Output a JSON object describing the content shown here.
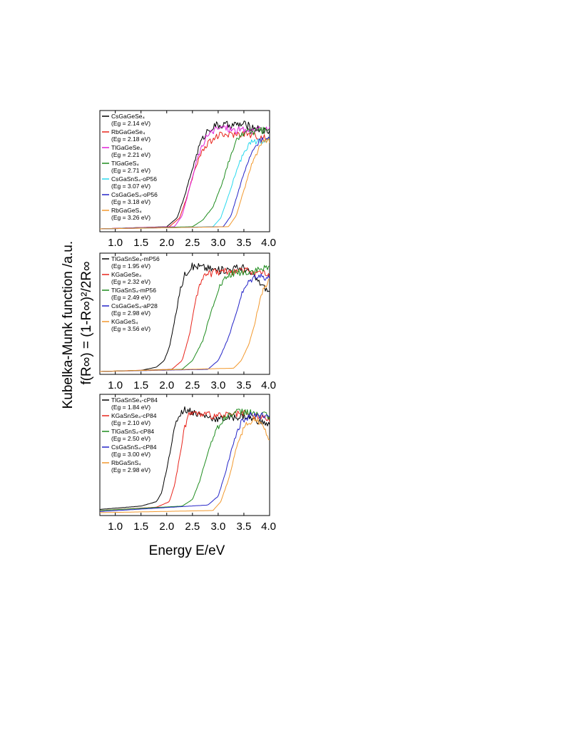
{
  "colors": {
    "black": "#000000",
    "red": "#e8251c",
    "magenta": "#e020d8",
    "green": "#1e8c1e",
    "cyan": "#29d9ee",
    "blue": "#2424c8",
    "orange": "#f2992e"
  },
  "figure": {
    "ylabel_line1": "Kubelka-Munk function /a.u.",
    "ylabel_line2": "f(R∞) = (1-R∞)²/2R∞",
    "xlabel": "Energy E/eV"
  },
  "chart_data": [
    {
      "type": "line",
      "xlim": [
        0.7,
        4.0
      ],
      "ylim": [
        0,
        1
      ],
      "y_ticks_shown": false,
      "xticks": [
        "1.0",
        "1.5",
        "2.0",
        "2.5",
        "3.0",
        "3.5",
        "4.0"
      ],
      "tick_values": [
        1.0,
        1.5,
        2.0,
        2.5,
        3.0,
        3.5,
        4.0
      ],
      "legend_position": "top-left",
      "series": [
        {
          "name": "CsGaGeSe4",
          "label": "CsGaGeSe₄",
          "eg_text": "(Eg = 2.14 eV)",
          "color": "black",
          "eg": 2.14,
          "x": [
            0.7,
            2.0,
            2.2,
            2.35,
            2.5,
            2.65,
            2.8,
            2.95,
            3.5,
            4.0
          ],
          "y": [
            0.0,
            0.02,
            0.1,
            0.3,
            0.55,
            0.78,
            0.9,
            0.94,
            0.95,
            0.88
          ]
        },
        {
          "name": "RbGaGeSe4",
          "label": "RbGaGeSe₄",
          "eg_text": "(Eg = 2.18 eV)",
          "color": "red",
          "eg": 2.18,
          "x": [
            0.7,
            2.05,
            2.25,
            2.4,
            2.55,
            2.7,
            2.85,
            3.0,
            3.5,
            4.0
          ],
          "y": [
            0.0,
            0.02,
            0.1,
            0.3,
            0.55,
            0.72,
            0.8,
            0.85,
            0.87,
            0.82
          ]
        },
        {
          "name": "TlGaGeSe4",
          "label": "TlGaGeSe₄",
          "eg_text": "(Eg = 2.21 eV)",
          "color": "magenta",
          "eg": 2.21,
          "x": [
            0.7,
            2.15,
            2.3,
            2.45,
            2.6,
            2.75,
            2.9,
            3.1,
            3.3
          ],
          "y": [
            0.0,
            0.02,
            0.12,
            0.38,
            0.65,
            0.82,
            0.9,
            0.93,
            0.9
          ]
        },
        {
          "name": "TlGaGeS4",
          "label": "TlGaGeS₄",
          "eg_text": "(Eg = 2.71 eV)",
          "color": "green",
          "eg": 2.71,
          "x": [
            0.7,
            2.5,
            2.7,
            2.9,
            3.05,
            3.2,
            3.35,
            3.5,
            4.0
          ],
          "y": [
            0.0,
            0.02,
            0.08,
            0.2,
            0.38,
            0.6,
            0.8,
            0.88,
            0.9
          ]
        },
        {
          "name": "CsGaSnS4-oP56",
          "label": "CsGaSnS₄-oP56",
          "eg_text": "(Eg = 3.07 eV)",
          "color": "cyan",
          "eg": 3.07,
          "x": [
            0.7,
            2.9,
            3.05,
            3.2,
            3.35,
            3.5,
            3.6,
            4.0
          ],
          "y": [
            0.0,
            0.02,
            0.1,
            0.3,
            0.52,
            0.7,
            0.78,
            0.82
          ]
        },
        {
          "name": "CsGaGeS4-oP56",
          "label": "CsGaGeS₄-oP56",
          "eg_text": "(Eg = 3.18 eV)",
          "color": "blue",
          "eg": 3.18,
          "x": [
            0.7,
            3.1,
            3.25,
            3.4,
            3.55,
            3.7,
            3.8,
            4.0
          ],
          "y": [
            0.0,
            0.02,
            0.12,
            0.35,
            0.58,
            0.75,
            0.8,
            0.82
          ]
        },
        {
          "name": "RbGaGeS4",
          "label": "RbGaGeS₄",
          "eg_text": "(Eg = 3.26 eV)",
          "color": "orange",
          "eg": 3.26,
          "x": [
            0.7,
            3.2,
            3.35,
            3.5,
            3.65,
            3.8,
            3.9,
            4.0
          ],
          "y": [
            0.0,
            0.02,
            0.12,
            0.35,
            0.58,
            0.75,
            0.8,
            0.8
          ]
        }
      ]
    },
    {
      "type": "line",
      "xlim": [
        0.7,
        4.0
      ],
      "ylim": [
        0,
        1
      ],
      "y_ticks_shown": false,
      "xticks": [
        "1.0",
        "1.5",
        "2.0",
        "2.5",
        "3.0",
        "3.5",
        "4.0"
      ],
      "tick_values": [
        1.0,
        1.5,
        2.0,
        2.5,
        3.0,
        3.5,
        4.0
      ],
      "legend_position": "top-left",
      "series": [
        {
          "name": "TlGaSnSe4-mP56",
          "label": "TlGaSnSe₄-mP56",
          "eg_text": "(Eg = 1.95 eV)",
          "color": "black",
          "eg": 1.95,
          "x": [
            0.7,
            1.5,
            1.8,
            1.95,
            2.05,
            2.15,
            2.25,
            2.35,
            2.45,
            2.6,
            3.0,
            3.5,
            4.0
          ],
          "y": [
            0.0,
            0.01,
            0.04,
            0.1,
            0.22,
            0.45,
            0.72,
            0.88,
            0.95,
            0.96,
            0.92,
            0.95,
            0.72
          ]
        },
        {
          "name": "KGaGeSe4",
          "label": "KGaGeSe₄",
          "eg_text": "(Eg = 2.32 eV)",
          "color": "red",
          "eg": 2.32,
          "x": [
            0.7,
            2.1,
            2.3,
            2.45,
            2.55,
            2.65,
            2.75,
            2.9,
            3.5,
            4.0
          ],
          "y": [
            0.0,
            0.02,
            0.1,
            0.35,
            0.62,
            0.8,
            0.88,
            0.9,
            0.92,
            0.88
          ]
        },
        {
          "name": "TlGaSnS4-mP56",
          "label": "TlGaSnS₄-mP56",
          "eg_text": "(Eg = 2.49 eV)",
          "color": "green",
          "eg": 2.49,
          "x": [
            0.7,
            2.3,
            2.5,
            2.7,
            2.85,
            3.0,
            3.15,
            3.3,
            3.5,
            4.0
          ],
          "y": [
            0.0,
            0.02,
            0.1,
            0.28,
            0.52,
            0.75,
            0.85,
            0.9,
            0.9,
            0.94
          ]
        },
        {
          "name": "CsGaGeS4-aP28",
          "label": "CsGaGeS₄-aP28",
          "eg_text": "(Eg = 2.98 eV)",
          "color": "blue",
          "eg": 2.98,
          "x": [
            0.7,
            2.8,
            3.0,
            3.15,
            3.3,
            3.45,
            3.6,
            3.75,
            4.0
          ],
          "y": [
            0.0,
            0.02,
            0.1,
            0.25,
            0.45,
            0.7,
            0.82,
            0.88,
            0.85
          ]
        },
        {
          "name": "KGaGeS4",
          "label": "KGaGeS₄",
          "eg_text": "(Eg = 3.56 eV)",
          "color": "orange",
          "eg": 3.56,
          "x": [
            0.7,
            3.3,
            3.45,
            3.6,
            3.7,
            3.8,
            3.9,
            4.0
          ],
          "y": [
            0.0,
            0.03,
            0.1,
            0.25,
            0.42,
            0.62,
            0.78,
            0.82
          ]
        }
      ]
    },
    {
      "type": "line",
      "xlim": [
        0.7,
        4.0
      ],
      "ylim": [
        0,
        1
      ],
      "y_ticks_shown": false,
      "xticks": [
        "1.0",
        "1.5",
        "2.0",
        "2.5",
        "3.0",
        "3.5",
        "4.0"
      ],
      "tick_values": [
        1.0,
        1.5,
        2.0,
        2.5,
        3.0,
        3.5,
        4.0
      ],
      "legend_position": "top-left",
      "series": [
        {
          "name": "TlGaSnSe4-cP84",
          "label": "TlGaSnSe₄-cP84",
          "eg_text": "(Eg = 1.84 eV)",
          "color": "black",
          "eg": 1.84,
          "x": [
            0.7,
            1.5,
            1.8,
            1.9,
            2.0,
            2.1,
            2.2,
            2.3,
            2.4,
            2.6,
            3.0,
            3.5,
            4.0
          ],
          "y": [
            0.03,
            0.06,
            0.1,
            0.18,
            0.4,
            0.65,
            0.85,
            0.93,
            0.94,
            0.9,
            0.85,
            0.88,
            0.8
          ]
        },
        {
          "name": "KGaSnSe4-cP84",
          "label": "KGaSnSe₄-cP84",
          "eg_text": "(Eg = 2.10 eV)",
          "color": "red",
          "eg": 2.1,
          "x": [
            0.7,
            1.8,
            2.05,
            2.15,
            2.25,
            2.35,
            2.45,
            2.6,
            3.0,
            3.5,
            4.0
          ],
          "y": [
            0.02,
            0.05,
            0.1,
            0.25,
            0.5,
            0.78,
            0.92,
            0.9,
            0.88,
            0.9,
            0.85
          ]
        },
        {
          "name": "TlGaSnS4-cP84",
          "label": "TlGaSnS₄-cP84",
          "eg_text": "(Eg = 2.50 eV)",
          "color": "green",
          "eg": 2.5,
          "x": [
            0.7,
            2.3,
            2.5,
            2.65,
            2.8,
            2.95,
            3.1,
            3.25,
            3.5,
            4.0
          ],
          "y": [
            0.02,
            0.06,
            0.12,
            0.3,
            0.55,
            0.75,
            0.85,
            0.9,
            0.92,
            0.88
          ]
        },
        {
          "name": "CsGaSnS4-cP84",
          "label": "CsGaSnS₄-cP84",
          "eg_text": "(Eg = 3.00 eV)",
          "color": "blue",
          "eg": 3.0,
          "x": [
            0.7,
            2.8,
            3.0,
            3.15,
            3.3,
            3.45,
            3.6,
            4.0
          ],
          "y": [
            0.01,
            0.07,
            0.15,
            0.38,
            0.65,
            0.82,
            0.88,
            0.9
          ]
        },
        {
          "name": "RbGaSnS4",
          "label": "RbGaSnS₄",
          "eg_text": "(Eg = 2.98 eV)",
          "color": "orange",
          "eg": 2.98,
          "x": [
            0.7,
            2.9,
            3.05,
            3.2,
            3.35,
            3.5,
            3.7,
            3.9,
            4.0
          ],
          "y": [
            0.0,
            0.02,
            0.1,
            0.3,
            0.58,
            0.78,
            0.86,
            0.78,
            0.65
          ]
        }
      ]
    }
  ]
}
